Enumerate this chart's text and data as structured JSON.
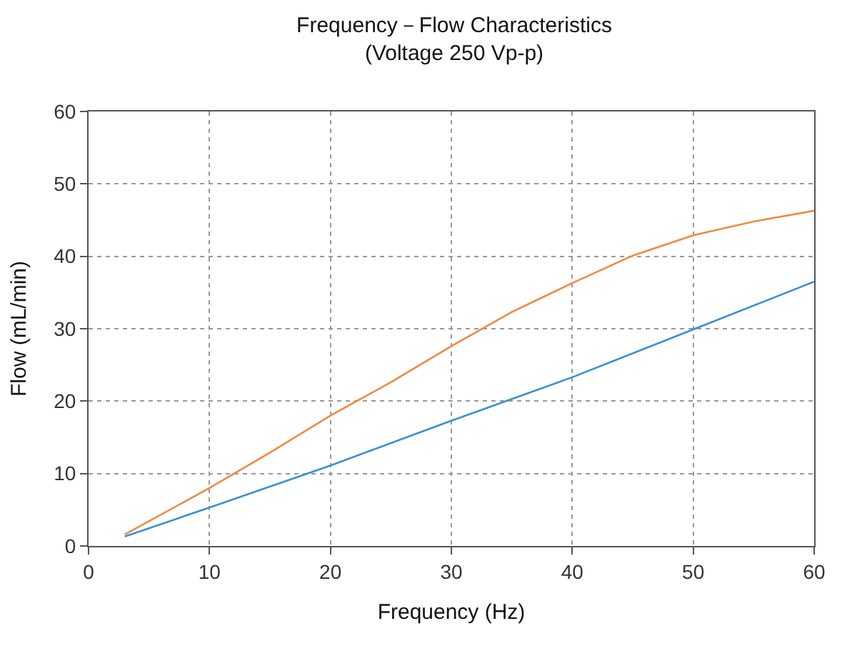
{
  "chart_data": {
    "type": "line",
    "title": "Frequency－Flow Characteristics",
    "subtitle": "(Voltage 250 Vp-p)",
    "xlabel": "Frequency (Hz)",
    "ylabel": "Flow (mL/min)",
    "xlim": [
      0,
      60
    ],
    "xticks": [
      0,
      10,
      20,
      30,
      40,
      50,
      60
    ],
    "ylim": [
      0,
      60
    ],
    "yticks": [
      0,
      10,
      20,
      30,
      40,
      50,
      60
    ],
    "grid": true,
    "marker": "none",
    "line_style": "solid",
    "series": [
      {
        "color": "#f08a3c",
        "x": [
          3,
          10,
          15,
          20,
          25,
          30,
          35,
          40,
          45,
          50,
          55,
          60
        ],
        "values": [
          1.6,
          8.0,
          12.9,
          18.0,
          22.6,
          27.6,
          32.3,
          36.3,
          40.1,
          42.9,
          44.8,
          46.3
        ]
      },
      {
        "color": "#3a8fd6",
        "x": [
          3,
          10,
          20,
          30,
          40,
          50,
          60
        ],
        "values": [
          1.3,
          5.3,
          11.1,
          17.3,
          23.3,
          29.9,
          36.5
        ]
      }
    ]
  }
}
